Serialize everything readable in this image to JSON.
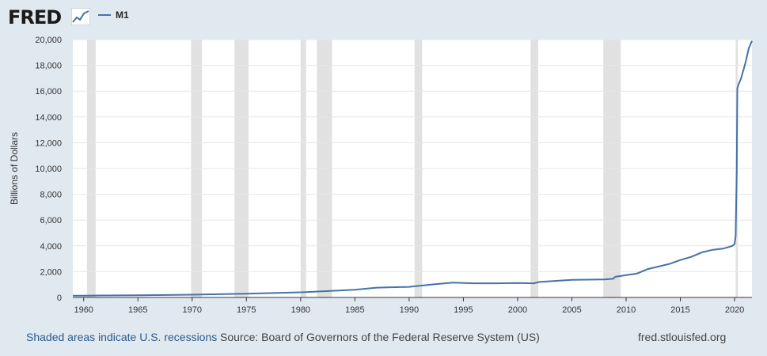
{
  "header": {
    "logo_text": "FRED",
    "logo_icon": "chart-line-icon",
    "legend_label": "M1"
  },
  "footer": {
    "recession_note": "Shaded areas indicate U.S. recessions",
    "source": "Source: Board of Governors of the Federal Reserve System (US)",
    "site": "fred.stlouisfed.org"
  },
  "colors": {
    "series": "#4572a7",
    "recession": "#e1e1e1",
    "background": "#e1e9f0",
    "plot": "#ffffff"
  },
  "chart_data": {
    "type": "line",
    "ylabel": "Billions of Dollars",
    "xlim": [
      1959,
      2021.6
    ],
    "ylim": [
      0,
      20000
    ],
    "yticks": [
      0,
      2000,
      4000,
      6000,
      8000,
      10000,
      12000,
      14000,
      16000,
      18000,
      20000
    ],
    "ytick_labels": [
      "0",
      "2,000",
      "4,000",
      "6,000",
      "8,000",
      "10,000",
      "12,000",
      "14,000",
      "16,000",
      "18,000",
      "20,000"
    ],
    "xticks": [
      1960,
      1965,
      1970,
      1975,
      1980,
      1985,
      1990,
      1995,
      2000,
      2005,
      2010,
      2015,
      2020
    ],
    "xtick_labels": [
      "1960",
      "1965",
      "1970",
      "1975",
      "1980",
      "1985",
      "1990",
      "1995",
      "2000",
      "2005",
      "2010",
      "2015",
      "2020"
    ],
    "grid": "horizontal",
    "recessions": [
      [
        1960.3,
        1961.1
      ],
      [
        1969.9,
        1970.9
      ],
      [
        1973.9,
        1975.2
      ],
      [
        1980.0,
        1980.5
      ],
      [
        1981.5,
        1982.9
      ],
      [
        1990.5,
        1991.2
      ],
      [
        2001.2,
        2001.9
      ],
      [
        2007.9,
        2009.5
      ],
      [
        2020.1,
        2020.3
      ]
    ],
    "series": [
      {
        "x": [
          1959,
          1960,
          1965,
          1970,
          1975,
          1980,
          1982,
          1985,
          1987,
          1990,
          1992,
          1994,
          1996,
          1998,
          2000,
          2001.5,
          2002,
          2005,
          2008,
          2008.8,
          2009,
          2011,
          2012,
          2014,
          2015,
          2016,
          2017,
          2018,
          2019,
          2019.8,
          2020.0,
          2020.1,
          2020.2,
          2020.25,
          2020.35,
          2020.6,
          2021.0,
          2021.3,
          2021.6
        ],
        "y": [
          140,
          140,
          170,
          215,
          290,
          400,
          470,
          600,
          760,
          820,
          1000,
          1150,
          1100,
          1100,
          1120,
          1100,
          1200,
          1370,
          1400,
          1450,
          1600,
          1850,
          2200,
          2600,
          2900,
          3150,
          3500,
          3700,
          3800,
          4000,
          4150,
          4800,
          10000,
          16200,
          16500,
          17000,
          18200,
          19300,
          19900
        ]
      }
    ]
  }
}
